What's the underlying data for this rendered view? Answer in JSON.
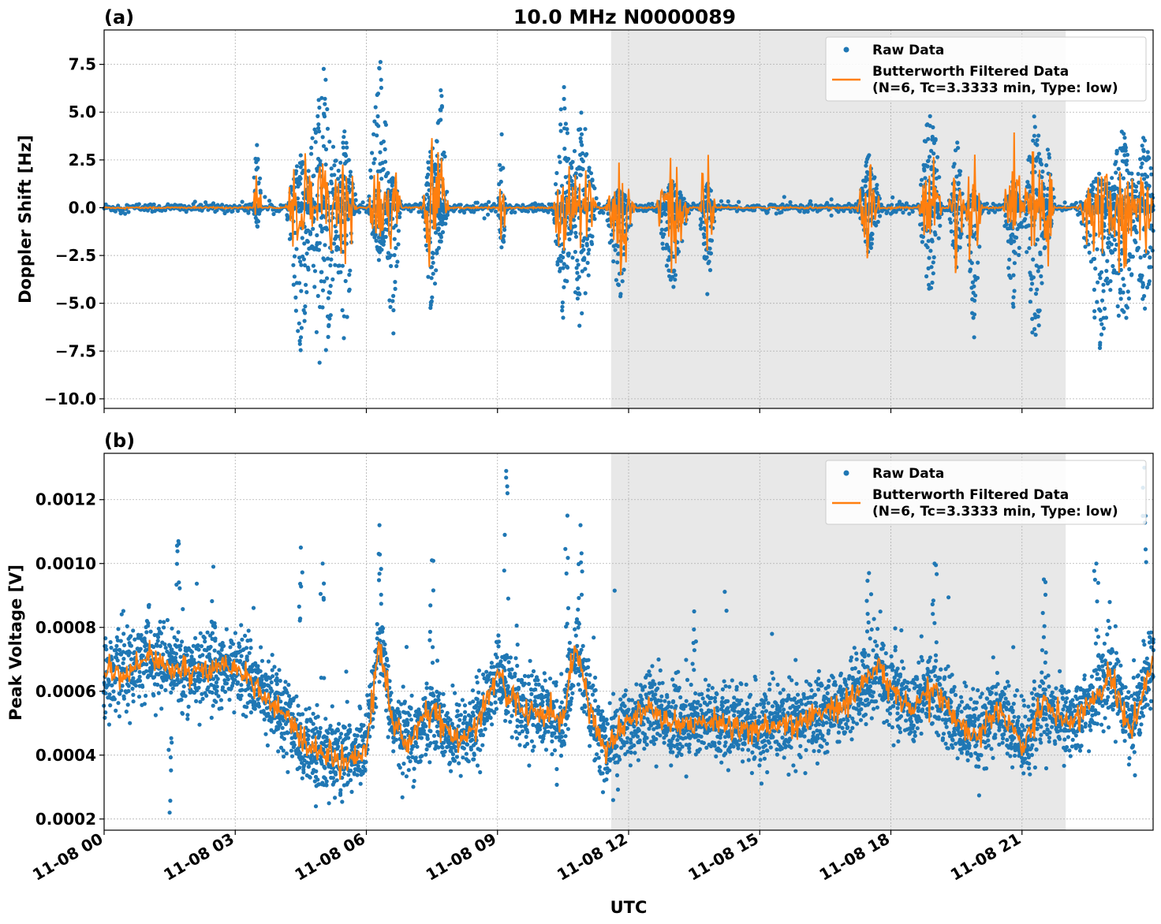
{
  "chart_data": {
    "type": "scatter",
    "title": "10.0 MHz N0000089",
    "xlabel": "UTC",
    "x_ticks": [
      "11-08 00",
      "11-08 03",
      "11-08 06",
      "11-08 09",
      "11-08 12",
      "11-08 15",
      "11-08 18",
      "11-08 21"
    ],
    "x_range_hours": [
      0,
      24
    ],
    "shaded_region_hours": [
      11.6,
      22.0
    ],
    "grid": true,
    "colors": {
      "raw": "#1f77b4",
      "filtered": "#ff7f0e",
      "shade": "#e8e8e8"
    },
    "legend_placement": "top-right",
    "panels": [
      {
        "label": "(a)",
        "ylabel": "Doppler Shift [Hz]",
        "ylim": [
          -10.5,
          9.3
        ],
        "y_ticks": [
          7.5,
          5.0,
          2.5,
          0.0,
          -2.5,
          -5.0,
          -7.5,
          -10.0
        ],
        "y_tick_labels": [
          "7.5",
          "5.0",
          "2.5",
          "0.0",
          "−2.5",
          "−5.0",
          "−7.5",
          "−10.0"
        ],
        "legend": {
          "raw": "Raw Data",
          "filtered_line1": "Butterworth Filtered Data",
          "filtered_line2": "(N=6, Tc=3.3333 min, Type: low)"
        },
        "baseline": 0.0,
        "events": [
          {
            "hour": 3.5,
            "width": 0.1,
            "min": -1.0,
            "max": 5.0
          },
          {
            "hour": 4.5,
            "width": 0.35,
            "min": -8.0,
            "max": 3.0
          },
          {
            "hour": 5.0,
            "width": 0.45,
            "min": -9.5,
            "max": 8.0
          },
          {
            "hour": 5.5,
            "width": 0.3,
            "min": -7.5,
            "max": 4.0
          },
          {
            "hour": 6.3,
            "width": 0.3,
            "min": -3.0,
            "max": 8.5
          },
          {
            "hour": 6.6,
            "width": 0.2,
            "min": -7.5,
            "max": 2.0
          },
          {
            "hour": 7.5,
            "width": 0.25,
            "min": -6.5,
            "max": 3.5
          },
          {
            "hour": 7.7,
            "width": 0.2,
            "min": -2.0,
            "max": 7.0
          },
          {
            "hour": 9.1,
            "width": 0.1,
            "min": -3.0,
            "max": 4.0
          },
          {
            "hour": 10.5,
            "width": 0.25,
            "min": -6.0,
            "max": 7.0
          },
          {
            "hour": 10.9,
            "width": 0.4,
            "min": -6.5,
            "max": 5.5
          },
          {
            "hour": 11.8,
            "width": 0.35,
            "min": -5.0,
            "max": 1.0
          },
          {
            "hour": 13.0,
            "width": 0.4,
            "min": -4.5,
            "max": 1.5
          },
          {
            "hour": 13.8,
            "width": 0.2,
            "min": -5.0,
            "max": 1.5
          },
          {
            "hour": 17.5,
            "width": 0.3,
            "min": -2.5,
            "max": 3.0
          },
          {
            "hour": 18.9,
            "width": 0.3,
            "min": -5.0,
            "max": 6.0
          },
          {
            "hour": 19.5,
            "width": 0.2,
            "min": -3.5,
            "max": 4.0
          },
          {
            "hour": 19.9,
            "width": 0.2,
            "min": -7.0,
            "max": 1.0
          },
          {
            "hour": 20.8,
            "width": 0.25,
            "min": -5.5,
            "max": 1.5
          },
          {
            "hour": 21.3,
            "width": 0.3,
            "min": -8.5,
            "max": 5.5
          },
          {
            "hour": 21.6,
            "width": 0.15,
            "min": -2.0,
            "max": 4.0
          },
          {
            "hour": 22.8,
            "width": 0.5,
            "min": -8.0,
            "max": 2.0
          },
          {
            "hour": 23.3,
            "width": 0.4,
            "min": -7.5,
            "max": 4.5
          },
          {
            "hour": 23.8,
            "width": 0.3,
            "min": -6.5,
            "max": 4.0
          }
        ]
      },
      {
        "label": "(b)",
        "ylabel": "Peak Voltage [V]",
        "ylim": [
          0.000165,
          0.001345
        ],
        "y_ticks": [
          0.0012,
          0.001,
          0.0008,
          0.0006,
          0.0004,
          0.0002
        ],
        "y_tick_labels": [
          "0.0012",
          "0.0010",
          "0.0008",
          "0.0006",
          "0.0004",
          "0.0002"
        ],
        "legend": {
          "raw": "Raw Data",
          "filtered_line1": "Butterworth Filtered Data",
          "filtered_line2": "(N=6, Tc=3.3333 min, Type: low)"
        },
        "trend": {
          "hours": [
            0,
            0.5,
            1.0,
            1.5,
            2.0,
            3.0,
            4.0,
            4.5,
            5.0,
            5.5,
            6.0,
            6.3,
            6.6,
            7.0,
            7.5,
            8.0,
            8.5,
            9.0,
            9.5,
            10.0,
            10.5,
            10.8,
            11.2,
            11.5,
            11.9,
            12.5,
            13.0,
            14.0,
            15.0,
            16.0,
            17.0,
            17.7,
            18.0,
            18.5,
            19.0,
            19.5,
            20.0,
            20.5,
            21.0,
            21.5,
            22.0,
            22.5,
            23.0,
            23.5,
            24.0
          ],
          "values": [
            0.00066,
            0.00066,
            0.00071,
            0.00067,
            0.00066,
            0.00068,
            0.00055,
            0.00045,
            0.0004,
            0.00038,
            0.00042,
            0.00075,
            0.0005,
            0.00044,
            0.00055,
            0.00045,
            0.00048,
            0.00065,
            0.00055,
            0.00054,
            0.0005,
            0.00075,
            0.0005,
            0.00041,
            0.0005,
            0.00055,
            0.0005,
            0.0005,
            0.00048,
            0.00051,
            0.00056,
            0.00068,
            0.0006,
            0.00055,
            0.00062,
            0.0005,
            0.00045,
            0.00055,
            0.00043,
            0.00057,
            0.0005,
            0.00055,
            0.00065,
            0.00048,
            0.0007
          ]
        },
        "noise": 6e-05,
        "spikes": [
          {
            "hour": 1.7,
            "value": 0.00107
          },
          {
            "hour": 1.5,
            "value": 0.00022
          },
          {
            "hour": 2.5,
            "value": 0.00099
          },
          {
            "hour": 4.5,
            "value": 0.00105
          },
          {
            "hour": 5.0,
            "value": 0.001
          },
          {
            "hour": 6.3,
            "value": 0.00112
          },
          {
            "hour": 7.5,
            "value": 0.00101
          },
          {
            "hour": 9.2,
            "value": 0.00129
          },
          {
            "hour": 10.6,
            "value": 0.00115
          },
          {
            "hour": 10.9,
            "value": 0.00112
          },
          {
            "hour": 13.5,
            "value": 0.00085
          },
          {
            "hour": 17.5,
            "value": 0.00097
          },
          {
            "hour": 19.0,
            "value": 0.001
          },
          {
            "hour": 21.5,
            "value": 0.00095
          },
          {
            "hour": 22.7,
            "value": 0.001
          },
          {
            "hour": 23.8,
            "value": 0.0013
          }
        ]
      }
    ]
  }
}
